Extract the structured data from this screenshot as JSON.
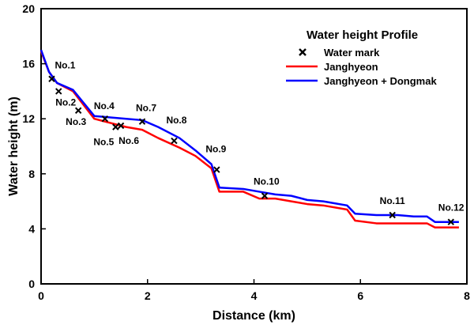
{
  "chart_data": {
    "type": "line",
    "title": "",
    "xlabel": "Distance (km)",
    "ylabel": "Water height (m)",
    "xlim": [
      0,
      8
    ],
    "ylim": [
      0,
      20
    ],
    "x_ticks": [
      0,
      2,
      4,
      6,
      8
    ],
    "y_ticks": [
      0,
      4,
      8,
      12,
      16,
      20
    ],
    "grid": false,
    "legend": {
      "title": "Water height Profile",
      "placement": "top-right",
      "entries": [
        {
          "label": "Water mark",
          "marker": "x",
          "color": "#000000"
        },
        {
          "label": "Janghyeon",
          "color": "#ff0000"
        },
        {
          "label": "Janghyeon + Dongmak",
          "color": "#0000ff"
        }
      ]
    },
    "series": [
      {
        "name": "Janghyeon",
        "color": "#ff0000",
        "x": [
          0,
          0.15,
          0.3,
          0.6,
          1.0,
          1.3,
          1.6,
          1.9,
          2.2,
          2.6,
          2.9,
          3.2,
          3.35,
          3.8,
          4.1,
          4.4,
          4.7,
          5.0,
          5.3,
          5.75,
          5.9,
          6.3,
          6.7,
          7.0,
          7.25,
          7.4,
          7.6,
          7.85
        ],
        "y": [
          16.9,
          15.4,
          14.6,
          14.0,
          12.0,
          11.7,
          11.4,
          11.2,
          10.6,
          9.9,
          9.3,
          8.4,
          6.7,
          6.7,
          6.2,
          6.2,
          6.0,
          5.8,
          5.7,
          5.4,
          4.6,
          4.4,
          4.4,
          4.4,
          4.4,
          4.1,
          4.1,
          4.1
        ]
      },
      {
        "name": "Janghyeon + Dongmak",
        "color": "#0000ff",
        "x": [
          0,
          0.15,
          0.3,
          0.6,
          1.0,
          1.3,
          1.6,
          1.9,
          2.2,
          2.6,
          2.9,
          3.2,
          3.35,
          3.8,
          4.1,
          4.4,
          4.7,
          5.0,
          5.3,
          5.75,
          5.9,
          6.3,
          6.7,
          7.0,
          7.25,
          7.4,
          7.6,
          7.85
        ],
        "y": [
          17.0,
          15.4,
          14.6,
          14.1,
          12.2,
          12.1,
          12.0,
          11.9,
          11.4,
          10.6,
          9.7,
          8.7,
          7.0,
          6.9,
          6.7,
          6.5,
          6.4,
          6.1,
          6.0,
          5.7,
          5.1,
          5.0,
          5.0,
          4.9,
          4.9,
          4.5,
          4.5,
          4.5
        ]
      }
    ],
    "water_marks": [
      {
        "label": "No.1",
        "x": 0.2,
        "y": 14.9
      },
      {
        "label": "No.2",
        "x": 0.33,
        "y": 14.0
      },
      {
        "label": "No.3",
        "x": 0.7,
        "y": 12.6
      },
      {
        "label": "No.4",
        "x": 1.2,
        "y": 12.0
      },
      {
        "label": "No.5",
        "x": 1.4,
        "y": 11.4
      },
      {
        "label": "No.6",
        "x": 1.5,
        "y": 11.5
      },
      {
        "label": "No.7",
        "x": 1.9,
        "y": 11.8
      },
      {
        "label": "No.8",
        "x": 2.5,
        "y": 10.4
      },
      {
        "label": "No.9",
        "x": 3.3,
        "y": 8.3
      },
      {
        "label": "No.10",
        "x": 4.2,
        "y": 6.4
      },
      {
        "label": "No.11",
        "x": 6.6,
        "y": 5.0
      },
      {
        "label": "No.12",
        "x": 7.7,
        "y": 4.5
      }
    ]
  }
}
